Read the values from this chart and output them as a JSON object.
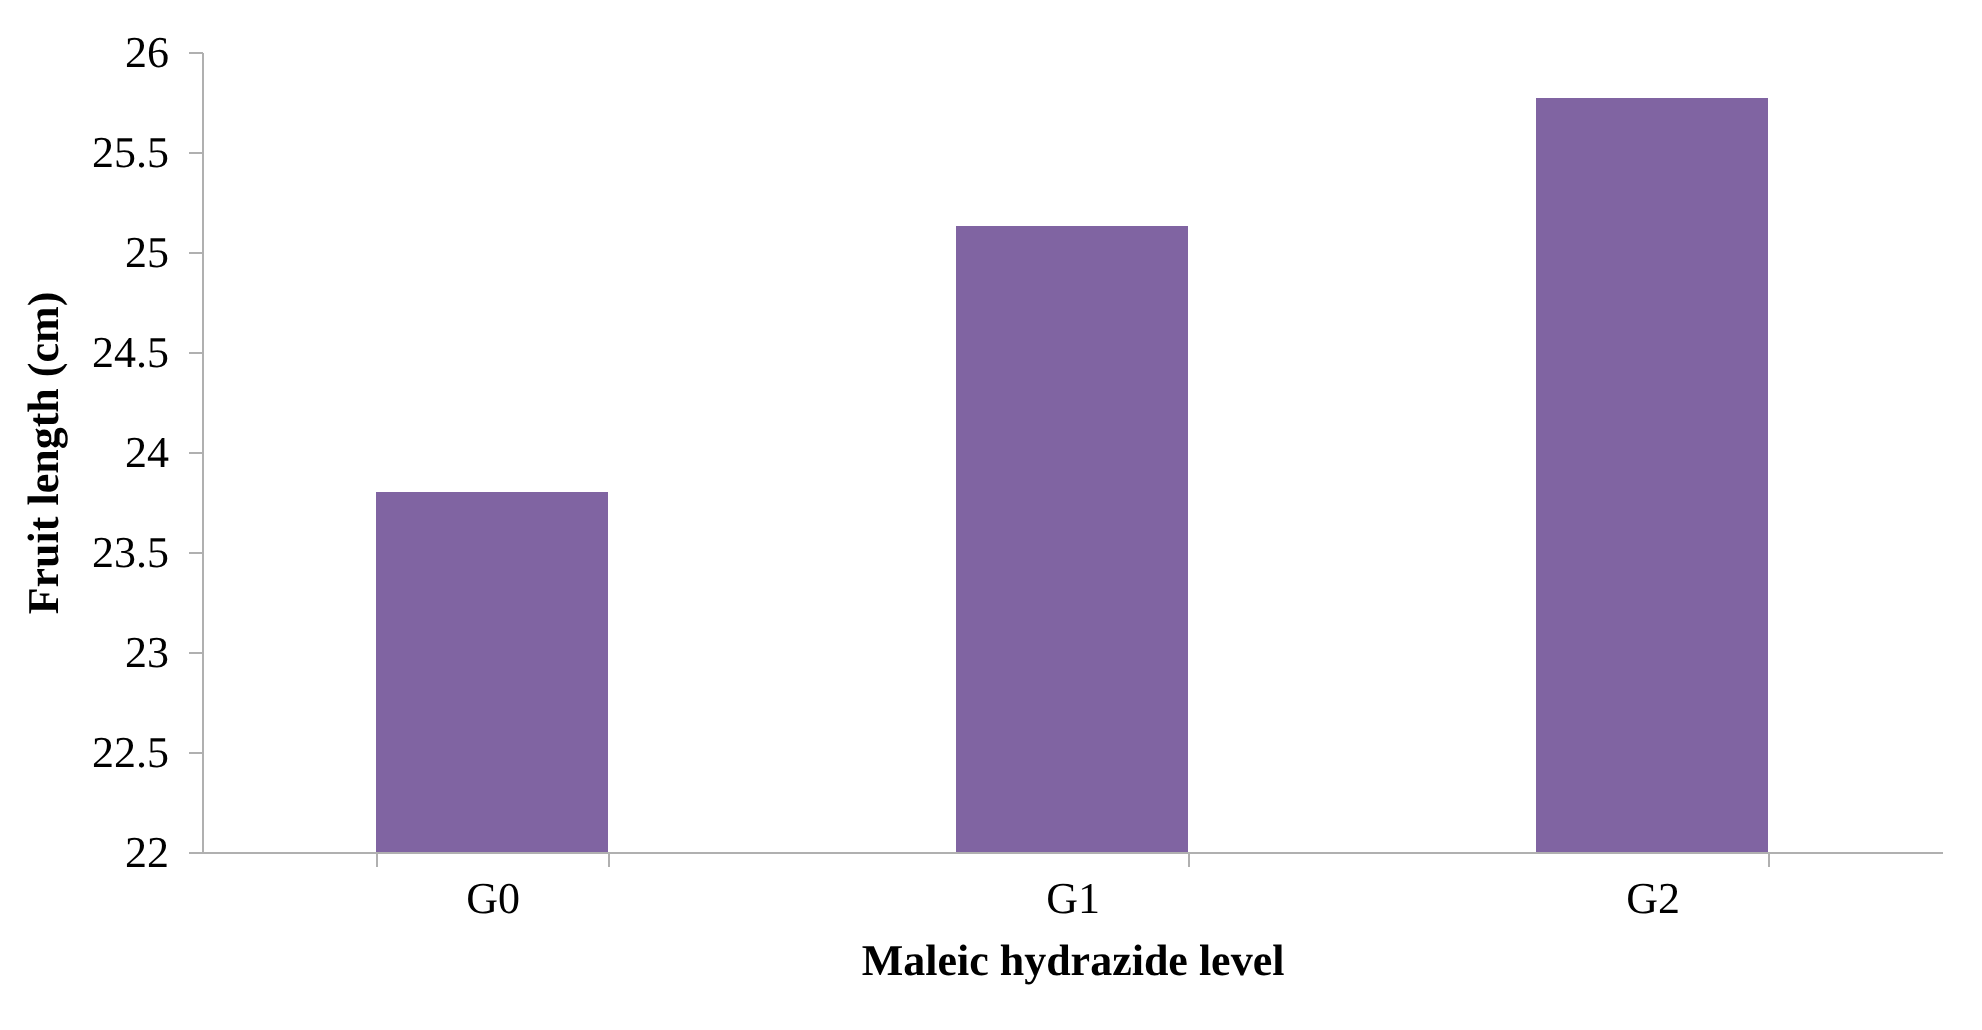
{
  "chart_data": {
    "type": "bar",
    "xlabel": "Maleic hydrazide level",
    "ylabel": "Fruit length (cm)",
    "categories": [
      "G0",
      "G1",
      "G2"
    ],
    "values": [
      23.8,
      25.13,
      25.77
    ],
    "color": "#8064a2",
    "ylim": [
      22,
      26
    ],
    "yticks": [
      22,
      22.5,
      23,
      23.5,
      24,
      24.5,
      25,
      25.5,
      26
    ],
    "grid": false
  }
}
